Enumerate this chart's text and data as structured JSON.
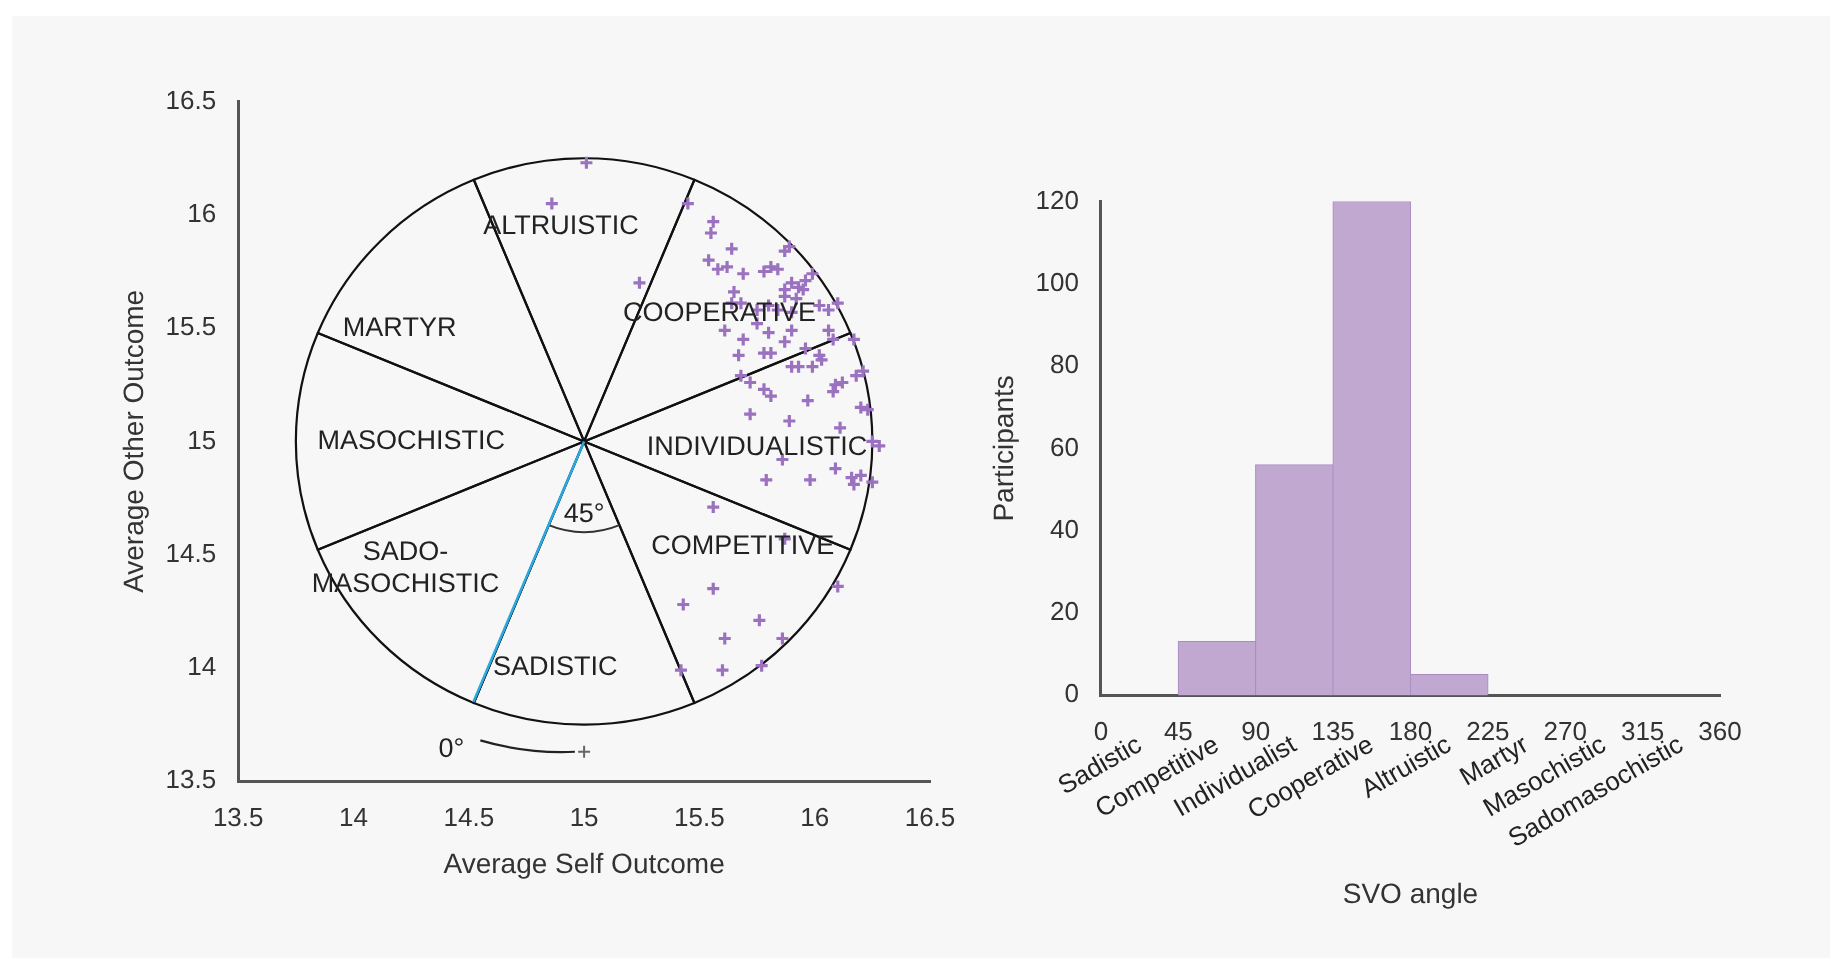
{
  "chart_data": [
    {
      "type": "scatter",
      "xlabel": "Average Self Outcome",
      "ylabel": "Average Other Outcome",
      "series": [
        {
          "type": "line",
          "color": "#2aa8e0",
          "marker": "none",
          "x": [
            15,
            14.52
          ],
          "values": [
            15,
            13.85
          ]
        },
        {
          "type": "scatter",
          "color": "#9b72c0",
          "marker": "cross",
          "x": [
            15.45,
            15.56,
            15.55,
            15.64,
            15.54,
            15.58,
            15.62,
            15.69,
            15.78,
            15.81,
            15.84,
            15.87,
            15.89,
            15.9,
            15.87,
            15.93,
            15.96,
            15.99,
            15.65,
            15.64,
            15.68,
            15.75,
            15.8,
            15.84,
            15.87,
            15.92,
            15.95,
            15.9,
            16.02,
            16.06,
            16.1,
            16.06,
            15.61,
            15.69,
            15.75,
            15.8,
            15.87,
            15.9,
            15.96,
            16.02,
            16.03,
            16.08,
            16.17,
            15.78,
            15.81,
            15.67,
            15.68,
            15.72,
            15.9,
            15.93,
            15.99,
            16.18,
            16.21,
            16.09,
            16.12,
            16.08,
            15.78,
            15.81,
            15.97,
            15.72,
            15.89,
            16.2,
            16.23,
            16.11,
            16.25,
            16.28,
            15.86,
            15.79,
            15.98,
            16.09,
            16.16,
            16.2,
            16.25,
            16.17,
            15.56,
            15.24,
            15.87,
            16.1,
            15.56,
            15.43,
            15.76,
            15.61,
            15.86,
            15.42,
            15.6,
            15.77,
            15.01,
            14.86
          ],
          "values": [
            16.05,
            15.97,
            15.92,
            15.85,
            15.8,
            15.76,
            15.77,
            15.74,
            15.75,
            15.77,
            15.76,
            15.84,
            15.86,
            15.7,
            15.67,
            15.68,
            15.71,
            15.74,
            15.66,
            15.61,
            15.61,
            15.58,
            15.6,
            15.58,
            15.64,
            15.63,
            15.67,
            15.57,
            15.6,
            15.58,
            15.61,
            15.49,
            15.49,
            15.45,
            15.52,
            15.48,
            15.44,
            15.49,
            15.41,
            15.38,
            15.36,
            15.45,
            15.45,
            15.39,
            15.39,
            15.38,
            15.29,
            15.26,
            15.33,
            15.33,
            15.33,
            15.29,
            15.31,
            15.25,
            15.26,
            15.22,
            15.23,
            15.2,
            15.18,
            15.12,
            15.09,
            15.15,
            15.14,
            15.06,
            15.0,
            14.98,
            14.92,
            14.83,
            14.83,
            14.88,
            14.84,
            14.85,
            14.82,
            14.81,
            14.71,
            15.7,
            14.57,
            14.36,
            14.35,
            14.28,
            14.21,
            14.13,
            14.13,
            13.99,
            13.99,
            14.01,
            16.23,
            16.05
          ]
        }
      ],
      "xlim": [
        13.5,
        16.5
      ],
      "xticks": [
        13.5,
        14,
        14.5,
        15,
        15.5,
        16,
        16.5
      ],
      "ylim": [
        13.5,
        16.5
      ],
      "yticks": [
        13.5,
        14,
        14.5,
        15,
        15.5,
        16,
        16.5
      ],
      "grid": false,
      "annotations": [
        "ALTRUISTIC",
        "COOPERATIVE",
        "INDIVIDUALISTIC",
        "COMPETITIVE",
        "SADISTIC",
        "SADO-\nMASOCHISTIC",
        "MASOCHISTIC",
        "MARTYR",
        "45°",
        "0°"
      ]
    },
    {
      "type": "histogram",
      "xlabel": "SVO angle",
      "ylabel": "Participants",
      "color": "#c0a8d0",
      "bins": [
        0,
        45,
        90,
        135,
        180,
        225,
        270,
        315,
        360
      ],
      "values": [
        0,
        13,
        56,
        120,
        5,
        0,
        0,
        0
      ],
      "xlim": [
        0,
        360
      ],
      "xticks": [
        0,
        45,
        90,
        135,
        180,
        225,
        270,
        315,
        360
      ],
      "ylim": [
        0,
        120
      ],
      "yticks": [
        0,
        20,
        40,
        60,
        80,
        100,
        120
      ],
      "grid": false,
      "annotations": [
        "Sadistic",
        "Competitive",
        "Individualist",
        "Cooperative",
        "Altruistic",
        "Martyr",
        "Masochistic",
        "Sadomasochistic"
      ]
    }
  ]
}
